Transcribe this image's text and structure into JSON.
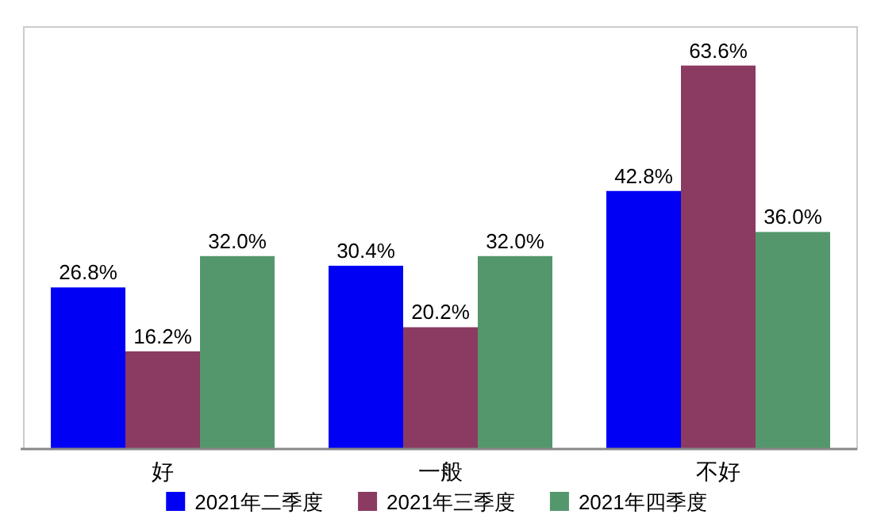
{
  "chart_data": {
    "type": "bar",
    "categories": [
      "好",
      "一般",
      "不好"
    ],
    "series": [
      {
        "name": "2021年二季度",
        "color": "#0000f5",
        "values": [
          26.8,
          30.4,
          42.8
        ],
        "value_labels": [
          "26.8%",
          "30.4%",
          "42.8%"
        ]
      },
      {
        "name": "2021年三季度",
        "color": "#8b3a62",
        "values": [
          16.2,
          20.2,
          63.6
        ],
        "value_labels": [
          "16.2%",
          "20.2%",
          "63.6%"
        ]
      },
      {
        "name": "2021年四季度",
        "color": "#54976d",
        "values": [
          32.0,
          32.0,
          36.0
        ],
        "value_labels": [
          "32.0%",
          "32.0%",
          "36.0%"
        ]
      }
    ],
    "ylim": [
      0,
      70
    ],
    "legend": "bottom"
  }
}
